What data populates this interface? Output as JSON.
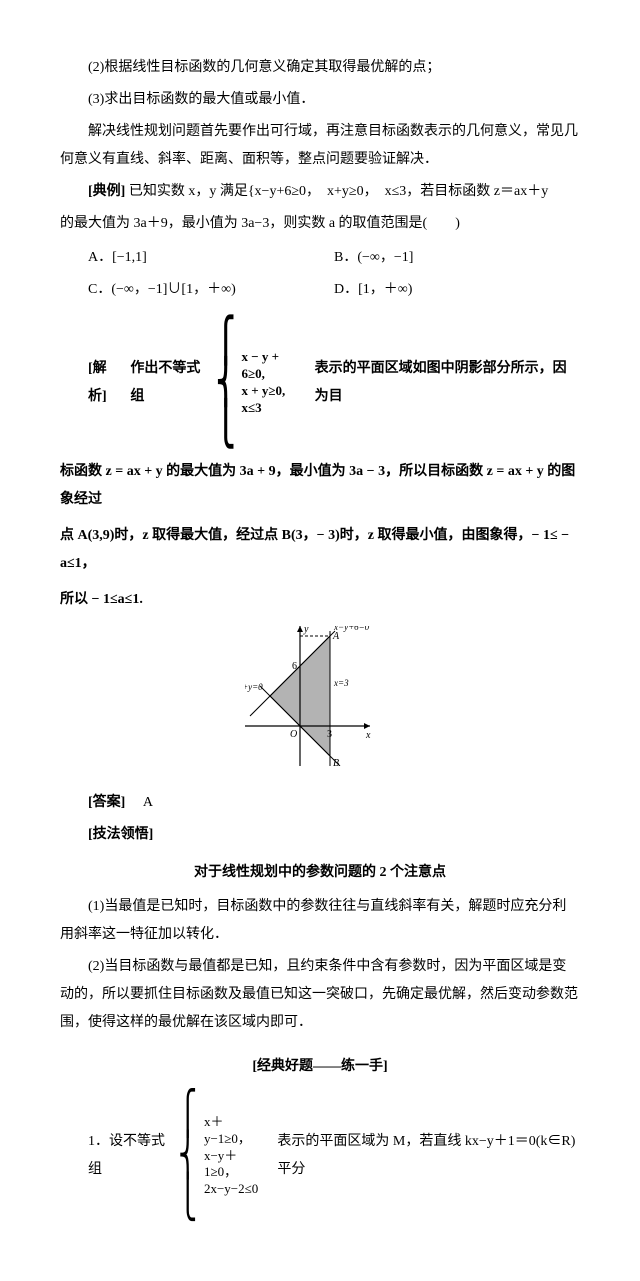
{
  "p1": "(2)根据线性目标函数的几何意义确定其取得最优解的点；",
  "p2": "(3)求出目标函数的最大值或最小值．",
  "p3": "解决线性规划问题首先要作出可行域，再注意目标函数表示的几何意义，常见几何意义有直线、斜率、距离、面积等，整点问题要验证解决．",
  "example_label": "[典例]",
  "example_text1": "已知实数 x，y 满足{x−y+6≥0，　x+y≥0，　x≤3，若目标函数 z＝ax＋y",
  "example_text2": "的最大值为 3a＋9，最小值为 3a−3，则实数 a 的取值范围是(　　)",
  "options": {
    "A": "A．[−1,1]",
    "B": "B．(−∞，−1]",
    "C": "C．(−∞，−1]∪[1，＋∞)",
    "D": "D．[1，＋∞)"
  },
  "analysis_label": "[解析]",
  "analysis_pre": "作出不等式组",
  "brace1": {
    "l1": "x − y + 6≥0,",
    "l2": "x + y≥0,",
    "l3": "x≤3"
  },
  "analysis_post": "表示的平面区域如图中阴影部分所示，因为目",
  "analysis_p2": "标函数 z = ax + y 的最大值为 3a + 9，最小值为 3a − 3，所以目标函数 z = ax + y 的图象经过",
  "analysis_p3": "点 A(3,9)时，z 取得最大值，经过点 B(3，− 3)时，z 取得最小值，由图象得，− 1≤ − a≤1，",
  "analysis_p4": "所以 − 1≤a≤1.",
  "figure": {
    "width": 150,
    "height": 140,
    "axis_color": "#000",
    "fill_color": "#b3b3b3",
    "dash": "3,2",
    "lbl_y": "y",
    "lbl_x": "x",
    "lbl_A": "A",
    "lbl_B": "B",
    "lbl_O": "O",
    "lbl_6": "6",
    "lbl_3": "3",
    "lbl_xy0": "x+y=0",
    "lbl_x3": "x=3",
    "lbl_line": "x−y+6=0"
  },
  "answer_label": "[答案]",
  "answer": "A",
  "tips_label": "[技法领悟]",
  "tips_title": "对于线性规划中的参数问题的 2 个注意点",
  "tips_p1": "(1)当最值是已知时，目标函数中的参数往往与直线斜率有关，解题时应充分利用斜率这一特征加以转化．",
  "tips_p2": "(2)当目标函数与最值都是已知，且约束条件中含有参数时，因为平面区域是变动的，所以要抓住目标函数及最值已知这一突破口，先确定最优解，然后变动参数范围，使得这样的最优解在该区域内即可．",
  "practice_title": "[经典好题——练一手]",
  "q1_pre": "1．设不等式组",
  "brace2": {
    "l1": "x＋y−1≥0，",
    "l2": "x−y＋1≥0，",
    "l3": "2x−y−2≤0"
  },
  "q1_post": "表示的平面区域为 M，若直线 kx−y＋1＝0(k∈R)平分"
}
